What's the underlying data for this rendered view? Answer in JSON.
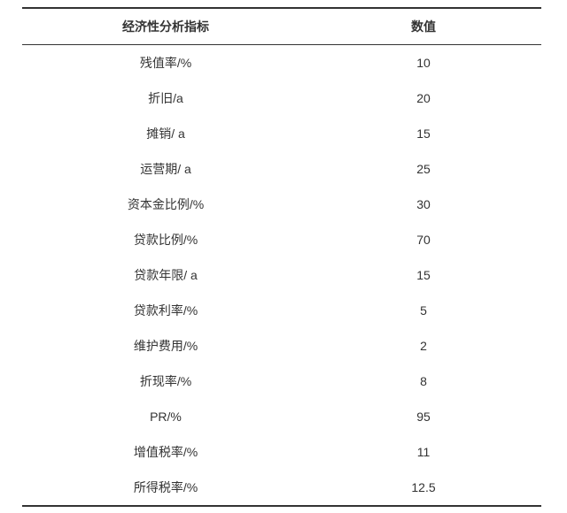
{
  "table": {
    "header": [
      "经济性分析指标",
      "数值"
    ],
    "rows": [
      [
        "残值率/%",
        "10"
      ],
      [
        "折旧/a",
        "20"
      ],
      [
        "摊销/ a",
        "15"
      ],
      [
        "运营期/ a",
        "25"
      ],
      [
        "资本金比例/%",
        "30"
      ],
      [
        "贷款比例/%",
        "70"
      ],
      [
        "贷款年限/ a",
        "15"
      ],
      [
        "贷款利率/%",
        "5"
      ],
      [
        "维护费用/%",
        "2"
      ],
      [
        "折现率/%",
        "8"
      ],
      [
        "PR/%",
        "95"
      ],
      [
        "增值税率/%",
        "11"
      ],
      [
        "所得税率/%",
        "12.5"
      ]
    ]
  }
}
